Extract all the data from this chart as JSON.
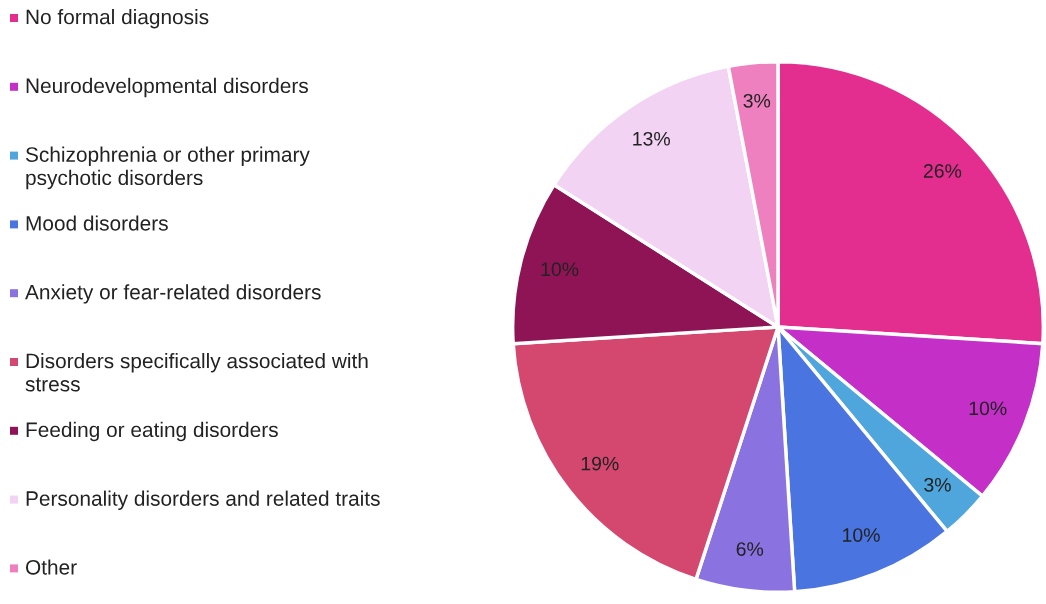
{
  "chart_data": {
    "type": "pie",
    "categories": [
      "No formal diagnosis",
      "Neurodevelopmental disorders",
      "Schizophrenia or other primary\npsychotic disorders",
      "Mood disorders",
      "Anxiety or fear-related disorders",
      "Disorders specifically associated with\nstress",
      "Feeding or eating disorders",
      "Personality disorders and related traits",
      "Other"
    ],
    "values": [
      26,
      10,
      3,
      10,
      6,
      19,
      10,
      13,
      3
    ],
    "colors": [
      "#e32d8f",
      "#c42fc8",
      "#4ea6dc",
      "#4a74e0",
      "#8a72e0",
      "#d4476f",
      "#8f1455",
      "#f3d3f3",
      "#ee80c0"
    ],
    "value_labels": [
      "26%",
      "10%",
      "3%",
      "10%",
      "6%",
      "19%",
      "10%",
      "13%",
      "3%"
    ],
    "legend": "left"
  }
}
